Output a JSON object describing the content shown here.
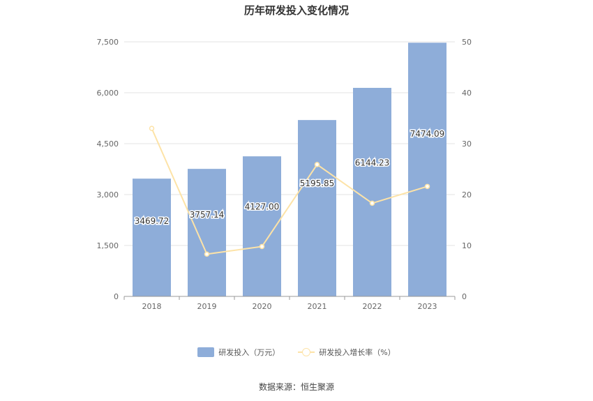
{
  "chart_data": {
    "type": "bar",
    "title": "历年研发投入变化情况",
    "categories": [
      "2018",
      "2019",
      "2020",
      "2021",
      "2022",
      "2023"
    ],
    "series": [
      {
        "name": "研发投入（万元）",
        "type": "bar",
        "axis": "left",
        "values": [
          3469.72,
          3757.14,
          4127.0,
          5195.85,
          6144.23,
          7474.09
        ],
        "labels": [
          "3469.72",
          "3757.14",
          "4127.00",
          "5195.85",
          "6144.23",
          "7474.09"
        ],
        "color": "#8eadd9"
      },
      {
        "name": "研发投入增长率（%）",
        "type": "line",
        "axis": "right",
        "values": [
          33.0,
          8.3,
          9.8,
          25.9,
          18.3,
          21.6
        ],
        "color": "#fde3a7"
      }
    ],
    "y_left": {
      "ylim": [
        0,
        7500
      ],
      "ticks": [
        0,
        1500,
        3000,
        4500,
        6000,
        7500
      ],
      "tick_labels": [
        "0",
        "1,500",
        "3,000",
        "4,500",
        "6,000",
        "7,500"
      ]
    },
    "y_right": {
      "ylim": [
        0,
        50
      ],
      "ticks": [
        0,
        10,
        20,
        30,
        40,
        50
      ],
      "tick_labels": [
        "0",
        "10",
        "20",
        "30",
        "40",
        "50"
      ]
    },
    "grid": true,
    "legend_position": "bottom"
  },
  "source": "数据来源：恒生聚源"
}
